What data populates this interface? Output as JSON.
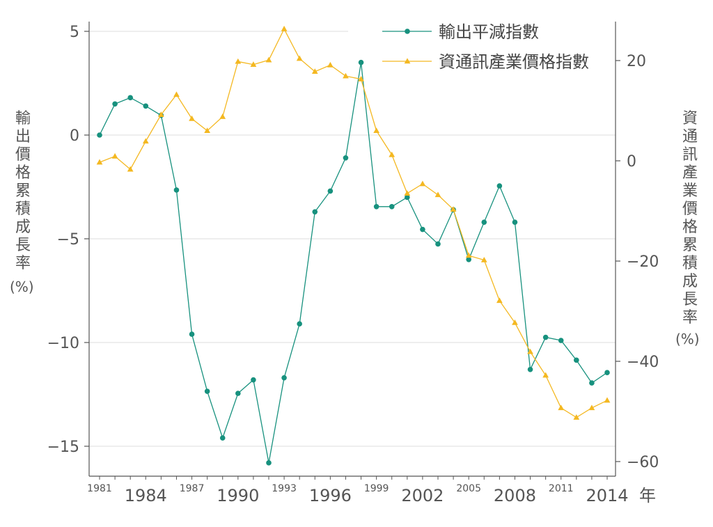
{
  "chart_data": {
    "type": "line",
    "x_unit_label": "年",
    "x": [
      1981,
      1982,
      1983,
      1984,
      1985,
      1986,
      1987,
      1988,
      1989,
      1990,
      1991,
      1992,
      1993,
      1994,
      1995,
      1996,
      1997,
      1998,
      1999,
      2000,
      2001,
      2002,
      2003,
      2004,
      2005,
      2006,
      2007,
      2008,
      2009,
      2010,
      2011,
      2012,
      2013,
      2014
    ],
    "x_ticks_major": [
      1984,
      1990,
      1996,
      2002,
      2008,
      2014
    ],
    "x_ticks_minor": [
      1981,
      1987,
      1993,
      1999,
      2005,
      2011
    ],
    "y_left": {
      "label": "輸出價格累積成長率",
      "unit": "(%)",
      "ticks": [
        5,
        0,
        -5,
        -10,
        -15
      ],
      "tick_labels": [
        "5",
        "0",
        "−5",
        "−10",
        "−15"
      ],
      "range": [
        -16.2,
        5
      ]
    },
    "y_right": {
      "label": "資通訊產業價格累積成長率",
      "unit": "(%)",
      "ticks": [
        20,
        0,
        -20,
        -40,
        -60
      ],
      "tick_labels": [
        "20",
        "0",
        "−20",
        "−40",
        "−60"
      ],
      "range": [
        -62.5,
        26.5
      ]
    },
    "grid": true,
    "legend_position": "top-right",
    "series": [
      {
        "name": "輸出平減指數",
        "axis": "left",
        "marker": "circle",
        "color": "#17917e",
        "values": [
          0.0,
          1.5,
          1.8,
          1.4,
          0.95,
          -2.65,
          -9.6,
          -12.35,
          -14.6,
          -12.45,
          -11.8,
          -15.8,
          -11.7,
          -9.1,
          -3.7,
          -2.7,
          -1.1,
          3.5,
          -3.45,
          -3.45,
          -3.0,
          -4.55,
          -5.25,
          -3.6,
          -6.0,
          -4.2,
          -2.45,
          -4.2,
          -11.3,
          -9.75,
          -9.9,
          -10.85,
          -11.95,
          -11.45
        ]
      },
      {
        "name": "資通訊產業價格指數",
        "axis": "right",
        "marker": "triangle",
        "color": "#f4b821",
        "values": [
          -0.3,
          0.9,
          -1.7,
          3.9,
          9.2,
          13.2,
          8.4,
          6.0,
          8.8,
          19.8,
          19.2,
          20.1,
          26.3,
          20.4,
          17.8,
          19.1,
          16.9,
          16.3,
          6.0,
          1.2,
          -6.5,
          -4.6,
          -6.8,
          -9.7,
          -18.9,
          -19.8,
          -27.9,
          -32.3,
          -38.1,
          -42.8,
          -49.3,
          -51.2,
          -49.3,
          -47.8
        ]
      }
    ]
  }
}
